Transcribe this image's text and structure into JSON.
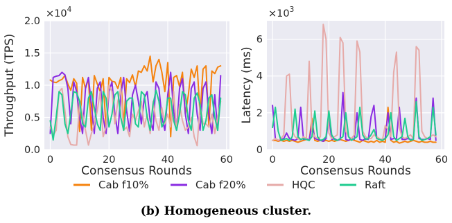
{
  "caption": "(b) Homogeneous cluster.",
  "legend": {
    "items": [
      {
        "label": "Cab f10%",
        "color": "#f5820d"
      },
      {
        "label": "Cab f20%",
        "color": "#8a2be2"
      },
      {
        "label": "HQC",
        "color": "#e6aaa8"
      },
      {
        "label": "Raft",
        "color": "#1fcc8f"
      }
    ]
  },
  "style": {
    "axes_bg": "#eaeaf2",
    "grid": "#ffffff",
    "text": "#262626"
  },
  "chart_data": [
    {
      "type": "line",
      "xlabel": "Consensus Rounds",
      "ylabel": "Throughput (TPS)",
      "multiplier": "×10",
      "multiplier_exp": "4",
      "xlim": [
        -2,
        61
      ],
      "ylim": [
        0.0,
        2.0
      ],
      "xticks": [
        0,
        20,
        40,
        60
      ],
      "yticks": [
        0.0,
        0.5,
        1.0,
        1.5,
        2.0
      ],
      "ytick_labels": [
        "0.0",
        "0.5",
        "1.0",
        "1.5",
        "2.0"
      ],
      "grid": true,
      "x": [
        0,
        1,
        2,
        3,
        4,
        5,
        6,
        7,
        8,
        9,
        10,
        11,
        12,
        13,
        14,
        15,
        16,
        17,
        18,
        19,
        20,
        21,
        22,
        23,
        24,
        25,
        26,
        27,
        28,
        29,
        30,
        31,
        32,
        33,
        34,
        35,
        36,
        37,
        38,
        39,
        40,
        41,
        42,
        43,
        44,
        45,
        46,
        47,
        48,
        49,
        50,
        51,
        52,
        53,
        54,
        55,
        56,
        57,
        58
      ],
      "series": [
        {
          "name": "Cab f10%",
          "color": "#f5820d",
          "values": [
            1.08,
            1.05,
            1.04,
            1.07,
            1.09,
            1.15,
            1.02,
            0.92,
            1.1,
            1.03,
            0.28,
            1.12,
            0.95,
            1.1,
            0.3,
            1.15,
            1.02,
            0.9,
            1.1,
            0.32,
            1.12,
            1.06,
            1.05,
            0.95,
            1.12,
            0.38,
            1.1,
            1.04,
            1.16,
            0.98,
            1.22,
            1.2,
            1.3,
            1.22,
            1.45,
            1.05,
            1.3,
            1.4,
            1.2,
            0.9,
            1.35,
            0.2,
            1.12,
            1.15,
            0.98,
            1.2,
            0.55,
            0.85,
            1.25,
            1.12,
            1.3,
            0.55,
            1.25,
            1.3,
            0.35,
            1.22,
            1.18,
            1.28,
            1.3
          ]
        },
        {
          "name": "Cab f20%",
          "color": "#8a2be2",
          "values": [
            0.25,
            1.12,
            1.14,
            1.15,
            1.2,
            1.16,
            0.95,
            0.4,
            1.05,
            0.9,
            0.5,
            0.25,
            0.95,
            1.12,
            0.7,
            0.25,
            0.95,
            1.05,
            0.5,
            0.25,
            0.9,
            1.05,
            0.55,
            0.25,
            0.85,
            1.12,
            0.6,
            0.28,
            0.85,
            1.0,
            0.75,
            0.4,
            0.8,
            0.9,
            0.45,
            0.3,
            1.05,
            0.95,
            0.5,
            0.3,
            0.85,
            1.2,
            0.6,
            0.3,
            0.95,
            1.1,
            0.55,
            0.25,
            0.95,
            1.05,
            0.55,
            0.3,
            0.95,
            1.05,
            0.55,
            0.25,
            0.85,
            0.3,
            1.15
          ]
        },
        {
          "name": "HQC",
          "color": "#e6aaa8",
          "values": [
            0.35,
            0.22,
            0.3,
            0.9,
            0.95,
            0.6,
            0.2,
            0.08,
            0.07,
            0.07,
            0.75,
            0.55,
            0.3,
            0.07,
            0.25,
            0.4,
            0.6,
            0.9,
            0.2,
            0.35,
            1.0,
            0.9,
            0.4,
            0.75,
            0.95,
            0.3,
            0.35,
            0.2,
            0.55,
            0.45,
            0.6,
            0.75,
            0.35,
            0.55,
            0.25,
            0.75,
            0.45,
            0.3,
            0.65,
            0.4,
            0.55,
            0.35,
            0.9,
            0.3,
            0.7,
            0.45,
            0.3,
            0.35,
            0.5,
            0.2,
            0.06,
            0.7,
            0.4,
            0.4,
            0.35,
            0.55,
            0.25,
            0.5,
            0.75
          ]
        },
        {
          "name": "Raft",
          "color": "#1fcc8f",
          "values": [
            0.45,
            0.15,
            0.5,
            0.9,
            0.85,
            0.4,
            0.25,
            0.55,
            0.9,
            0.88,
            0.75,
            0.4,
            0.35,
            0.8,
            0.9,
            0.65,
            0.4,
            0.3,
            0.9,
            0.8,
            0.35,
            0.55,
            0.85,
            0.9,
            0.5,
            0.3,
            0.75,
            0.8,
            0.8,
            0.4,
            0.35,
            0.9,
            0.85,
            0.5,
            0.3,
            0.7,
            0.92,
            0.75,
            0.35,
            0.45,
            0.8,
            0.8,
            0.45,
            0.3,
            0.55,
            0.9,
            0.85,
            0.45,
            0.3,
            0.8,
            0.88,
            0.7,
            0.3,
            0.45,
            0.8,
            0.85,
            0.5,
            0.3,
            0.8
          ]
        }
      ]
    },
    {
      "type": "line",
      "xlabel": "Consensus Rounds",
      "ylabel": "Latency (ms)",
      "multiplier": "×10",
      "multiplier_exp": "3",
      "xlim": [
        -2,
        61
      ],
      "ylim": [
        0,
        7.0
      ],
      "xticks": [
        0,
        20,
        40,
        60
      ],
      "yticks": [
        0,
        2,
        4,
        6
      ],
      "ytick_labels": [
        "0",
        "2",
        "4",
        "6"
      ],
      "grid": true,
      "x": [
        0,
        1,
        2,
        3,
        4,
        5,
        6,
        7,
        8,
        9,
        10,
        11,
        12,
        13,
        14,
        15,
        16,
        17,
        18,
        19,
        20,
        21,
        22,
        23,
        24,
        25,
        26,
        27,
        28,
        29,
        30,
        31,
        32,
        33,
        34,
        35,
        36,
        37,
        38,
        39,
        40,
        41,
        42,
        43,
        44,
        45,
        46,
        47,
        48,
        49,
        50,
        51,
        52,
        53,
        54,
        55,
        56,
        57,
        58
      ],
      "series": [
        {
          "name": "Cab f10%",
          "color": "#f5820d",
          "values": [
            0.5,
            0.5,
            0.45,
            0.5,
            0.45,
            0.5,
            0.45,
            0.5,
            0.45,
            0.4,
            0.45,
            0.5,
            0.55,
            0.5,
            1.7,
            0.5,
            0.45,
            0.5,
            0.45,
            0.5,
            0.45,
            0.5,
            0.45,
            0.5,
            0.55,
            0.5,
            0.45,
            0.5,
            0.55,
            0.5,
            0.45,
            0.4,
            0.5,
            0.45,
            0.4,
            0.45,
            0.4,
            0.5,
            0.4,
            0.45,
            0.4,
            2.3,
            0.5,
            0.4,
            0.45,
            0.35,
            0.4,
            0.45,
            0.4,
            0.45,
            0.5,
            0.45,
            0.4,
            0.45,
            0.4,
            0.4,
            0.45,
            0.4,
            0.4
          ]
        },
        {
          "name": "Cab f20%",
          "color": "#8a2be2",
          "values": [
            2.4,
            0.6,
            0.5,
            0.55,
            0.6,
            0.9,
            0.6,
            0.55,
            0.5,
            0.6,
            2.3,
            0.55,
            0.6,
            0.5,
            1.4,
            0.6,
            0.55,
            0.5,
            0.45,
            0.6,
            1.8,
            0.55,
            0.6,
            0.5,
            0.55,
            3.1,
            0.55,
            0.5,
            0.6,
            0.55,
            2.0,
            0.55,
            0.5,
            0.6,
            0.55,
            1.8,
            2.4,
            0.6,
            0.55,
            0.55,
            0.6,
            2.0,
            0.55,
            0.6,
            0.6,
            2.3,
            0.55,
            0.55,
            0.6,
            0.55,
            0.55,
            2.8,
            0.6,
            0.55,
            0.55,
            0.6,
            0.55,
            2.8,
            0.5
          ]
        },
        {
          "name": "HQC",
          "color": "#e6aaa8",
          "values": [
            0.5,
            0.6,
            0.5,
            0.6,
            0.8,
            4.0,
            4.1,
            1.0,
            0.7,
            0.6,
            0.5,
            0.7,
            0.6,
            4.8,
            1.0,
            0.7,
            0.6,
            0.7,
            6.8,
            6.0,
            0.9,
            0.6,
            0.7,
            0.8,
            6.1,
            5.8,
            1.0,
            0.7,
            0.6,
            0.8,
            5.9,
            5.3,
            1.0,
            0.7,
            0.6,
            0.6,
            0.8,
            0.7,
            0.6,
            0.5,
            1.3,
            1.1,
            0.7,
            4.2,
            5.3,
            1.2,
            0.7,
            0.6,
            0.7,
            0.8,
            0.6,
            5.6,
            5.4,
            1.0,
            0.7,
            0.6,
            0.7,
            0.8,
            0.7
          ]
        },
        {
          "name": "Raft",
          "color": "#1fcc8f",
          "values": [
            1.2,
            2.3,
            1.0,
            0.5,
            0.55,
            0.6,
            0.5,
            0.7,
            2.2,
            0.7,
            0.55,
            0.6,
            0.55,
            0.5,
            0.7,
            2.1,
            0.7,
            0.5,
            0.55,
            0.7,
            2.1,
            0.8,
            0.55,
            0.5,
            0.6,
            0.7,
            2.0,
            0.7,
            0.5,
            0.6,
            0.7,
            2.3,
            0.8,
            0.55,
            0.6,
            0.8,
            1.1,
            0.6,
            0.55,
            0.5,
            0.6,
            0.8,
            2.0,
            0.7,
            0.5,
            0.6,
            0.7,
            1.7,
            0.7,
            0.5,
            0.55,
            2.6,
            0.7,
            0.5,
            0.55,
            0.6,
            0.7,
            2.3,
            0.8
          ]
        }
      ]
    }
  ]
}
